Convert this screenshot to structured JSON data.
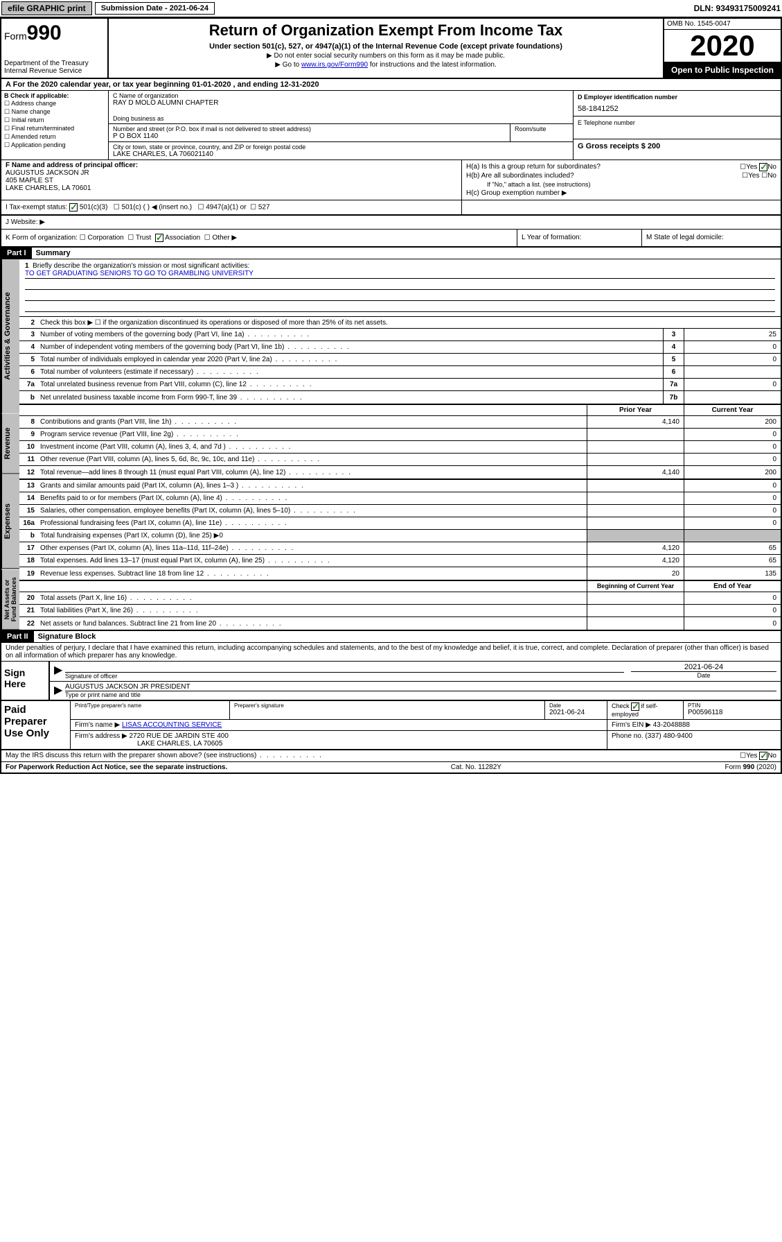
{
  "topbar": {
    "efile": "efile GRAPHIC print",
    "submission_label": "Submission Date - 2021-06-24",
    "dln": "DLN: 93493175009241"
  },
  "header": {
    "form_prefix": "Form",
    "form_num": "990",
    "dept": "Department of the Treasury\nInternal Revenue Service",
    "title": "Return of Organization Exempt From Income Tax",
    "subtitle": "Under section 501(c), 527, or 4947(a)(1) of the Internal Revenue Code (except private foundations)",
    "note1": "▶ Do not enter social security numbers on this form as it may be made public.",
    "note2_pre": "▶ Go to ",
    "note2_link": "www.irs.gov/Form990",
    "note2_post": " for instructions and the latest information.",
    "omb": "OMB No. 1545-0047",
    "year": "2020",
    "open": "Open to Public Inspection"
  },
  "line_a": "For the 2020 calendar year, or tax year beginning 01-01-2020     , and ending 12-31-2020",
  "section_b": {
    "label": "B Check if applicable:",
    "items": [
      "Address change",
      "Name change",
      "Initial return",
      "Final return/terminated",
      "Amended return",
      "Application pending"
    ]
  },
  "section_c": {
    "name_label": "C Name of organization",
    "name": "RAY D MOLO ALUMNI CHAPTER",
    "dba_label": "Doing business as",
    "addr_label": "Number and street (or P.O. box if mail is not delivered to street address)",
    "addr": "P O BOX 1140",
    "room_label": "Room/suite",
    "city_label": "City or town, state or province, country, and ZIP or foreign postal code",
    "city": "LAKE CHARLES, LA  706021140"
  },
  "section_d": {
    "label": "D Employer identification number",
    "value": "58-1841252"
  },
  "section_e": {
    "label": "E Telephone number",
    "value": ""
  },
  "section_g": {
    "label": "G Gross receipts $ 200"
  },
  "section_f": {
    "label": "F Name and address of principal officer:",
    "name": "AUGUSTUS JACKSON JR",
    "addr1": "405 MAPLE ST",
    "addr2": "LAKE CHARLES, LA  70601"
  },
  "section_h": {
    "ha": "H(a)  Is this a group return for subordinates?",
    "hb": "H(b)  Are all subordinates included?",
    "hb_note": "If \"No,\" attach a list. (see instructions)",
    "hc": "H(c)  Group exemption number ▶",
    "yes": "Yes",
    "no": "No"
  },
  "section_i": {
    "label": "I   Tax-exempt status:",
    "opts": [
      "501(c)(3)",
      "501(c) (  ) ◀ (insert no.)",
      "4947(a)(1) or",
      "527"
    ]
  },
  "section_j": {
    "label": "J   Website: ▶"
  },
  "section_k": {
    "label": "K Form of organization:",
    "opts": [
      "Corporation",
      "Trust",
      "Association",
      "Other ▶"
    ]
  },
  "section_l": "L Year of formation:",
  "section_m": "M State of legal domicile:",
  "part1": {
    "header": "Part I",
    "title": "Summary",
    "l1_label": "Briefly describe the organization's mission or most significant activities:",
    "l1_text": "TO GET GRADUATING SENIORS TO GO TO GRAMBLING UNIVERSITY",
    "l2": "Check this box ▶ ☐  if the organization discontinued its operations or disposed of more than 25% of its net assets.",
    "vtab_ag": "Activities & Governance",
    "vtab_rev": "Revenue",
    "vtab_exp": "Expenses",
    "vtab_na": "Net Assets or Fund Balances",
    "lines_gov": [
      {
        "n": "3",
        "t": "Number of voting members of the governing body (Part VI, line 1a)",
        "box": "3",
        "v": "25"
      },
      {
        "n": "4",
        "t": "Number of independent voting members of the governing body (Part VI, line 1b)",
        "box": "4",
        "v": "0"
      },
      {
        "n": "5",
        "t": "Total number of individuals employed in calendar year 2020 (Part V, line 2a)",
        "box": "5",
        "v": "0"
      },
      {
        "n": "6",
        "t": "Total number of volunteers (estimate if necessary)",
        "box": "6",
        "v": ""
      },
      {
        "n": "7a",
        "t": "Total unrelated business revenue from Part VIII, column (C), line 12",
        "box": "7a",
        "v": "0"
      },
      {
        "n": "b",
        "t": "Net unrelated business taxable income from Form 990-T, line 39",
        "box": "7b",
        "v": ""
      }
    ],
    "hdr_prior": "Prior Year",
    "hdr_current": "Current Year",
    "lines_rev": [
      {
        "n": "8",
        "t": "Contributions and grants (Part VIII, line 1h)",
        "p": "4,140",
        "c": "200"
      },
      {
        "n": "9",
        "t": "Program service revenue (Part VIII, line 2g)",
        "p": "",
        "c": "0"
      },
      {
        "n": "10",
        "t": "Investment income (Part VIII, column (A), lines 3, 4, and 7d )",
        "p": "",
        "c": "0"
      },
      {
        "n": "11",
        "t": "Other revenue (Part VIII, column (A), lines 5, 6d, 8c, 9c, 10c, and 11e)",
        "p": "",
        "c": "0"
      },
      {
        "n": "12",
        "t": "Total revenue—add lines 8 through 11 (must equal Part VIII, column (A), line 12)",
        "p": "4,140",
        "c": "200"
      }
    ],
    "lines_exp": [
      {
        "n": "13",
        "t": "Grants and similar amounts paid (Part IX, column (A), lines 1–3 )",
        "p": "",
        "c": "0"
      },
      {
        "n": "14",
        "t": "Benefits paid to or for members (Part IX, column (A), line 4)",
        "p": "",
        "c": "0"
      },
      {
        "n": "15",
        "t": "Salaries, other compensation, employee benefits (Part IX, column (A), lines 5–10)",
        "p": "",
        "c": "0"
      },
      {
        "n": "16a",
        "t": "Professional fundraising fees (Part IX, column (A), line 11e)",
        "p": "",
        "c": "0"
      },
      {
        "n": "b",
        "t": "Total fundraising expenses (Part IX, column (D), line 25) ▶0",
        "p": "shaded",
        "c": "shaded"
      },
      {
        "n": "17",
        "t": "Other expenses (Part IX, column (A), lines 11a–11d, 11f–24e)",
        "p": "4,120",
        "c": "65"
      },
      {
        "n": "18",
        "t": "Total expenses. Add lines 13–17 (must equal Part IX, column (A), line 25)",
        "p": "4,120",
        "c": "65"
      },
      {
        "n": "19",
        "t": "Revenue less expenses. Subtract line 18 from line 12",
        "p": "20",
        "c": "135"
      }
    ],
    "hdr_beg": "Beginning of Current Year",
    "hdr_end": "End of Year",
    "lines_na": [
      {
        "n": "20",
        "t": "Total assets (Part X, line 16)",
        "p": "",
        "c": "0"
      },
      {
        "n": "21",
        "t": "Total liabilities (Part X, line 26)",
        "p": "",
        "c": "0"
      },
      {
        "n": "22",
        "t": "Net assets or fund balances. Subtract line 21 from line 20",
        "p": "",
        "c": "0"
      }
    ]
  },
  "part2": {
    "header": "Part II",
    "title": "Signature Block",
    "declaration": "Under penalties of perjury, I declare that I have examined this return, including accompanying schedules and statements, and to the best of my knowledge and belief, it is true, correct, and complete. Declaration of preparer (other than officer) is based on all information of which preparer has any knowledge.",
    "sign_here": "Sign Here",
    "sig_officer": "Signature of officer",
    "sig_date": "2021-06-24",
    "date_label": "Date",
    "officer_name": "AUGUSTUS JACKSON JR  PRESIDENT",
    "officer_label": "Type or print name and title",
    "paid_label": "Paid Preparer Use Only",
    "prep_name_label": "Print/Type preparer's name",
    "prep_sig_label": "Preparer's signature",
    "prep_date_label": "Date",
    "prep_date": "2021-06-24",
    "check_self": "Check ☑ if self-employed",
    "ptin_label": "PTIN",
    "ptin": "P00596118",
    "firm_name_label": "Firm's name    ▶",
    "firm_name": "LISAS ACCOUNTING SERVICE",
    "firm_ein_label": "Firm's EIN ▶",
    "firm_ein": "43-2048888",
    "firm_addr_label": "Firm's address ▶",
    "firm_addr1": "2720 RUE DE JARDIN STE 400",
    "firm_addr2": "LAKE CHARLES, LA  70605",
    "phone_label": "Phone no.",
    "phone": "(337) 480-9400",
    "discuss": "May the IRS discuss this return with the preparer shown above? (see instructions)",
    "paperwork": "For Paperwork Reduction Act Notice, see the separate instructions.",
    "cat": "Cat. No. 11282Y",
    "formref": "Form 990 (2020)"
  }
}
